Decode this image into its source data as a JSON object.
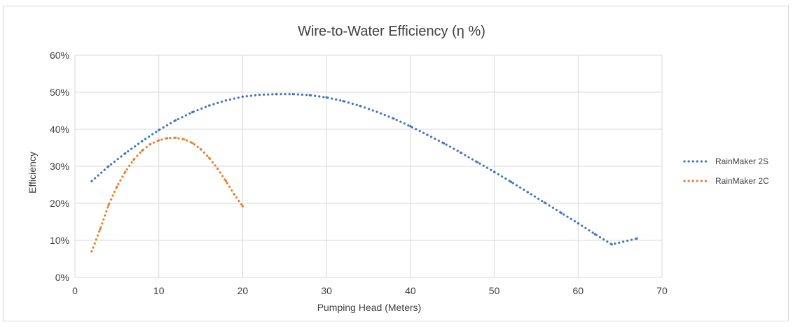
{
  "chart_data": {
    "type": "scatter",
    "title": "Wire-to-Water Efficiency (η %)",
    "xlabel": "Pumping Head (Meters)",
    "ylabel": "Efficiency",
    "xlim": [
      0,
      70
    ],
    "ylim": [
      0,
      60
    ],
    "x_ticks": [
      0,
      10,
      20,
      30,
      40,
      50,
      60,
      70
    ],
    "y_ticks": [
      0,
      10,
      20,
      30,
      40,
      50,
      60
    ],
    "y_tick_labels": [
      "0%",
      "10%",
      "20%",
      "30%",
      "40%",
      "50%",
      "60%"
    ],
    "grid": true,
    "legend_position": "right",
    "series": [
      {
        "name": "RainMaker 2S",
        "color": "#4472c4",
        "style": "dotted",
        "x": [
          2,
          4,
          6,
          8,
          10,
          12,
          14,
          16,
          18,
          20,
          22,
          24,
          26,
          28,
          30,
          32,
          34,
          36,
          38,
          40,
          42,
          44,
          46,
          48,
          50,
          52,
          54,
          56,
          58,
          60,
          62,
          64,
          67
        ],
        "y": [
          26,
          30,
          33.5,
          36.8,
          39.8,
          42.4,
          44.6,
          46.4,
          47.8,
          48.8,
          49.3,
          49.5,
          49.5,
          49.2,
          48.6,
          47.6,
          46.3,
          44.7,
          42.9,
          40.8,
          38.5,
          36.2,
          33.7,
          31.1,
          28.5,
          25.8,
          23.0,
          20.2,
          17.4,
          14.6,
          11.7,
          8.9,
          10.5
        ]
      },
      {
        "name": "RainMaker 2C",
        "color": "#ed7d31",
        "style": "dotted",
        "x": [
          2,
          3,
          4,
          5,
          6,
          7,
          8,
          9,
          10,
          11,
          12,
          13,
          14,
          15,
          16,
          17,
          18,
          19,
          20
        ],
        "y": [
          7,
          13,
          19.5,
          24.5,
          28.5,
          31.8,
          34.2,
          36.0,
          37.0,
          37.6,
          37.7,
          37.3,
          36.3,
          34.6,
          32.3,
          29.4,
          26.0,
          22.4,
          19.2
        ]
      }
    ]
  }
}
